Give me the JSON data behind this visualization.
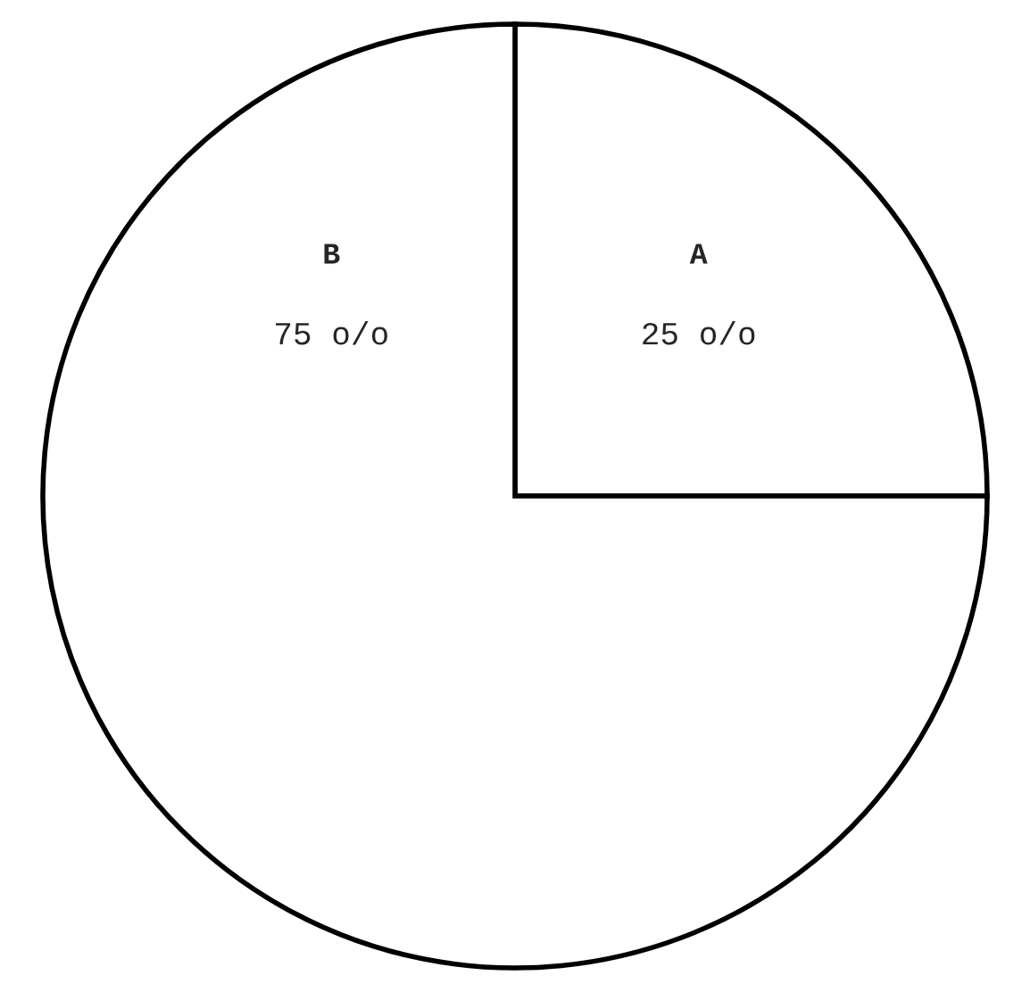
{
  "chart_data": {
    "type": "pie",
    "categories": [
      "A",
      "B"
    ],
    "values": [
      25,
      75
    ],
    "colors": [
      "#ffffff",
      "#ffffff"
    ],
    "value_labels": [
      "25 o/o",
      "75 o/o"
    ]
  }
}
